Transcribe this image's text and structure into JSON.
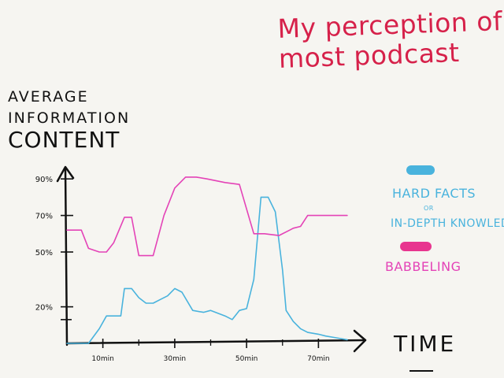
{
  "chart_data": {
    "type": "line",
    "title_lines": [
      "My perception of",
      "most podcast"
    ],
    "ylabel_lines": [
      "Average",
      "information",
      "content"
    ],
    "xlabel": "TIME",
    "ylim": [
      0,
      100
    ],
    "xlim": [
      0,
      80
    ],
    "yticks": [
      {
        "value": 90,
        "label": "90%"
      },
      {
        "value": 70,
        "label": "70%"
      },
      {
        "value": 50,
        "label": "50%"
      },
      {
        "value": 20,
        "label": "20%"
      }
    ],
    "xticks": [
      {
        "value": 10,
        "label": "10min"
      },
      {
        "value": 30,
        "label": "30min"
      },
      {
        "value": 50,
        "label": "50min"
      },
      {
        "value": 70,
        "label": "70min"
      }
    ],
    "legend_position": "right",
    "series": [
      {
        "name": "HARD FACTS",
        "name_small": "OR",
        "name_line2": "IN-DEPTH KNOWLEDGE",
        "color": "#49b3dd",
        "x": [
          0,
          3,
          6,
          9,
          11,
          12,
          15,
          16,
          18,
          20,
          22,
          24,
          26,
          28,
          30,
          32,
          35,
          38,
          40,
          44,
          46,
          48,
          50,
          52,
          54,
          56,
          58,
          60,
          61,
          63,
          65,
          67,
          70,
          72,
          75,
          78
        ],
        "y": [
          0,
          0,
          0,
          8,
          15,
          15,
          15,
          30,
          30,
          25,
          22,
          22,
          24,
          26,
          30,
          28,
          18,
          17,
          18,
          15,
          13,
          18,
          19,
          35,
          80,
          80,
          72,
          40,
          18,
          12,
          8,
          6,
          5,
          4,
          3,
          2
        ]
      },
      {
        "name": "BABBELING",
        "color": "#e443b7",
        "x": [
          0,
          4,
          6,
          9,
          11,
          13,
          16,
          18,
          20,
          24,
          27,
          30,
          33,
          36,
          39,
          44,
          48,
          52,
          55,
          59,
          62,
          63,
          65,
          67,
          72,
          75,
          78
        ],
        "y": [
          62,
          62,
          52,
          50,
          50,
          55,
          69,
          69,
          48,
          48,
          70,
          85,
          91,
          91,
          90,
          88,
          87,
          60,
          60,
          59,
          62,
          63,
          64,
          70,
          70,
          70,
          70
        ]
      }
    ]
  }
}
